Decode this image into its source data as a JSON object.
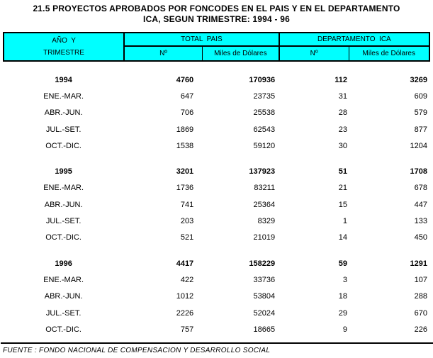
{
  "title": {
    "line1": "21.5 PROYECTOS APROBADOS POR FONCODES EN EL PAIS Y EN EL DEPARTAMENTO",
    "line2": "ICA, SEGUN TRIMESTRE: 1994 - 96"
  },
  "colors": {
    "header_bg": "#00FFFF",
    "border": "#000000",
    "text": "#000000",
    "page_bg": "#FFFFFF"
  },
  "table": {
    "header": {
      "col_year_line1": "AÑO  Y",
      "col_year_line2": "TRIMESTRE",
      "group_total": "TOTAL  PAIS",
      "group_depto": "DEPARTAMENTO  ICA",
      "sub_n": "Nº",
      "sub_miles": "Miles de Dólares"
    },
    "sections": [
      {
        "year": "1994",
        "totals": [
          "4760",
          "170936",
          "112",
          "3269"
        ],
        "rows": [
          {
            "label": "ENE.-MAR.",
            "values": [
              "647",
              "23735",
              "31",
              "609"
            ]
          },
          {
            "label": "ABR.-JUN.",
            "values": [
              "706",
              "25538",
              "28",
              "579"
            ]
          },
          {
            "label": "JUL.-SET.",
            "values": [
              "1869",
              "62543",
              "23",
              "877"
            ]
          },
          {
            "label": "OCT.-DIC.",
            "values": [
              "1538",
              "59120",
              "30",
              "1204"
            ]
          }
        ]
      },
      {
        "year": "1995",
        "totals": [
          "3201",
          "137923",
          "51",
          "1708"
        ],
        "rows": [
          {
            "label": "ENE.-MAR.",
            "values": [
              "1736",
              "83211",
              "21",
              "678"
            ]
          },
          {
            "label": "ABR.-JUN.",
            "values": [
              "741",
              "25364",
              "15",
              "447"
            ]
          },
          {
            "label": "JUL.-SET.",
            "values": [
              "203",
              "8329",
              "1",
              "133"
            ]
          },
          {
            "label": "OCT.-DIC.",
            "values": [
              "521",
              "21019",
              "14",
              "450"
            ]
          }
        ]
      },
      {
        "year": "1996",
        "totals": [
          "4417",
          "158229",
          "59",
          "1291"
        ],
        "rows": [
          {
            "label": "ENE.-MAR.",
            "values": [
              "422",
              "33736",
              "3",
              "107"
            ]
          },
          {
            "label": "ABR.-JUN.",
            "values": [
              "1012",
              "53804",
              "18",
              "288"
            ]
          },
          {
            "label": "JUL.-SET.",
            "values": [
              "2226",
              "52024",
              "29",
              "670"
            ]
          },
          {
            "label": "OCT.-DIC.",
            "values": [
              "757",
              "18665",
              "9",
              "226"
            ]
          }
        ]
      }
    ]
  },
  "footer": {
    "source": "FUENTE : FONDO NACIONAL DE COMPENSACION Y DESARROLLO SOCIAL"
  }
}
